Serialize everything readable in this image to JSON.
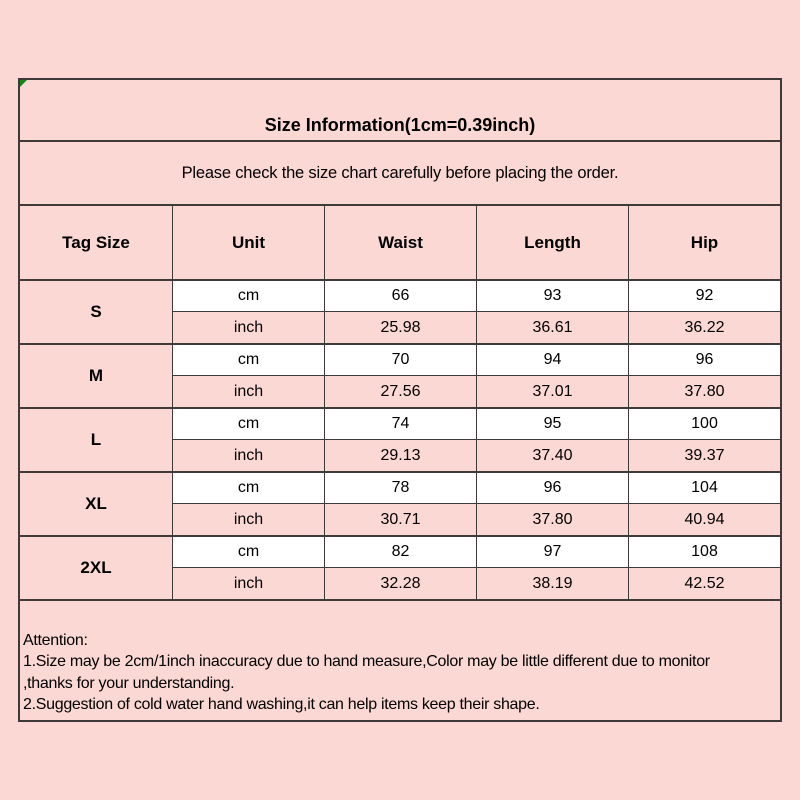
{
  "colors": {
    "background": "#fbd8d4",
    "cell_white": "#ffffff",
    "border": "#3e3a39",
    "text": "#000000",
    "corner_mark_green": "#158515"
  },
  "sizechart": {
    "title": "Size Information(1cm=0.39inch)",
    "subtitle": "Please check the size chart carefully before placing the order.",
    "headers": [
      "Tag Size",
      "Unit",
      "Waist",
      "Length",
      "Hip"
    ],
    "rows": [
      {
        "size": "S",
        "units": [
          {
            "label": "cm",
            "values": [
              "66",
              "93",
              "92"
            ]
          },
          {
            "label": "inch",
            "values": [
              "25.98",
              "36.61",
              "36.22"
            ]
          }
        ]
      },
      {
        "size": "M",
        "units": [
          {
            "label": "cm",
            "values": [
              "70",
              "94",
              "96"
            ]
          },
          {
            "label": "inch",
            "values": [
              "27.56",
              "37.01",
              "37.80"
            ]
          }
        ]
      },
      {
        "size": "L",
        "units": [
          {
            "label": "cm",
            "values": [
              "74",
              "95",
              "100"
            ]
          },
          {
            "label": "inch",
            "values": [
              "29.13",
              "37.40",
              "39.37"
            ]
          }
        ]
      },
      {
        "size": "XL",
        "units": [
          {
            "label": "cm",
            "values": [
              "78",
              "96",
              "104"
            ]
          },
          {
            "label": "inch",
            "values": [
              "30.71",
              "37.80",
              "40.94"
            ]
          }
        ]
      },
      {
        "size": "2XL",
        "units": [
          {
            "label": "cm",
            "values": [
              "82",
              "97",
              "108"
            ]
          },
          {
            "label": "inch",
            "values": [
              "32.28",
              "38.19",
              "42.52"
            ]
          }
        ]
      }
    ],
    "attention": {
      "lines": [
        "Attention:",
        "1.Size may be 2cm/1inch inaccuracy due to hand measure,Color may be little different due to monitor",
        ",thanks for your understanding.",
        "2.Suggestion of cold water hand washing,it can help items keep their shape."
      ]
    }
  },
  "chart_data": {
    "type": "table",
    "title": "Size Information(1cm=0.39inch)",
    "subtitle": "Please check the size chart carefully before placing the order.",
    "columns": [
      "Tag Size",
      "Unit",
      "Waist",
      "Length",
      "Hip"
    ],
    "rows": [
      [
        "S",
        "cm",
        66,
        93,
        92
      ],
      [
        "S",
        "inch",
        25.98,
        36.61,
        36.22
      ],
      [
        "M",
        "cm",
        70,
        94,
        96
      ],
      [
        "M",
        "inch",
        27.56,
        37.01,
        37.8
      ],
      [
        "L",
        "cm",
        74,
        95,
        100
      ],
      [
        "L",
        "inch",
        29.13,
        37.4,
        39.37
      ],
      [
        "XL",
        "cm",
        78,
        96,
        104
      ],
      [
        "XL",
        "inch",
        30.71,
        37.8,
        40.94
      ],
      [
        "2XL",
        "cm",
        82,
        97,
        108
      ],
      [
        "2XL",
        "inch",
        32.28,
        38.19,
        42.52
      ]
    ],
    "notes": [
      "Attention:",
      "1.Size may be 2cm/1inch inaccuracy due to hand measure,Color may be little different due to monitor",
      ",thanks for your understanding.",
      "2.Suggestion of cold water hand washing,it can help items keep their shape."
    ]
  }
}
